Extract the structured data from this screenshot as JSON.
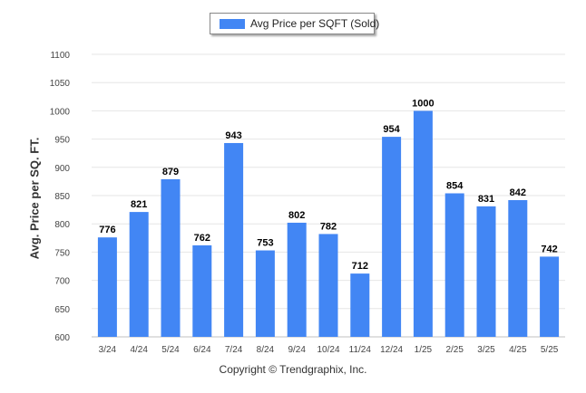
{
  "legend": {
    "label": "Avg Price per SQFT (Sold)"
  },
  "footer": {
    "copyright": "Copyright © Trendgraphix, Inc."
  },
  "chart_data": {
    "type": "bar",
    "categories": [
      "3/24",
      "4/24",
      "5/24",
      "6/24",
      "7/24",
      "8/24",
      "9/24",
      "10/24",
      "11/24",
      "12/24",
      "1/25",
      "2/25",
      "3/25",
      "4/25",
      "5/25"
    ],
    "series": [
      {
        "name": "Avg Price per SQFT (Sold)",
        "values": [
          776,
          821,
          879,
          762,
          943,
          753,
          802,
          782,
          712,
          954,
          1000,
          854,
          831,
          842,
          742
        ]
      }
    ],
    "ylabel": "Avg. Price per SQ. FT.",
    "xlabel": "",
    "ylim": [
      600,
      1100
    ],
    "yticks": [
      600,
      650,
      700,
      750,
      800,
      850,
      900,
      950,
      1000,
      1050,
      1100
    ],
    "grid": true,
    "legend_position": "top-center",
    "bar_color": "#4286f4",
    "data_labels": true
  }
}
